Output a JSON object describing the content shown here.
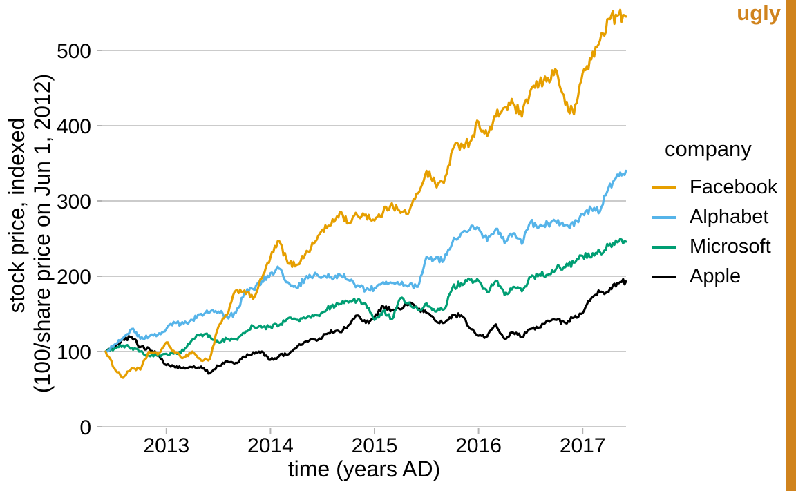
{
  "stamp": {
    "label": "ugly",
    "color": "#D0831D"
  },
  "chart_data": {
    "type": "line",
    "title": "",
    "xlabel": "time (years AD)",
    "ylabel_line1": "stock price, indexed",
    "ylabel_line2": "(100/share price on Jun 1, 2012)",
    "x_ticks": [
      2013,
      2014,
      2015,
      2016,
      2017
    ],
    "y_ticks": [
      0,
      100,
      200,
      300,
      400,
      500
    ],
    "x_range": [
      2012.417,
      2017.417
    ],
    "y_range": [
      0,
      560
    ],
    "grid": "horizontal-only",
    "legend": {
      "title": "company",
      "position": "right"
    },
    "colors": {
      "grid": "#CBCBCB",
      "tick": "#B3B3B3",
      "text": "#000000",
      "background": "#FFFFFF"
    },
    "line_width": 3.2,
    "x_monthly_start": "2012-06",
    "x_step_months": 1,
    "series": [
      {
        "name": "Facebook",
        "color": "#E69F00",
        "values": [
          100,
          78,
          65,
          78,
          76,
          100,
          96,
          112,
          98,
          92,
          100,
          88,
          90,
          133,
          149,
          181,
          181,
          170,
          197,
          225,
          247,
          217,
          215,
          229,
          243,
          262,
          268,
          285,
          271,
          281,
          282,
          274,
          285,
          297,
          284,
          286,
          310,
          340,
          323,
          324,
          368,
          376,
          378,
          405,
          386,
          412,
          424,
          429,
          412,
          447,
          455,
          463,
          473,
          428,
          415,
          470,
          488,
          513,
          542,
          546,
          545
        ]
      },
      {
        "name": "Alphabet",
        "color": "#56B4E9",
        "values": [
          100,
          109,
          118,
          130,
          117,
          120,
          122,
          130,
          138,
          137,
          142,
          150,
          152,
          153,
          146,
          151,
          178,
          183,
          193,
          204,
          210,
          192,
          185,
          197,
          201,
          199,
          199,
          202,
          195,
          188,
          182,
          184,
          192,
          191,
          189,
          188,
          186,
          226,
          223,
          221,
          245,
          257,
          262,
          264,
          247,
          263,
          244,
          257,
          243,
          272,
          266,
          270,
          271,
          268,
          267,
          283,
          290,
          286,
          318,
          335,
          340
        ]
      },
      {
        "name": "Microsoft",
        "color": "#009E73",
        "values": [
          100,
          104,
          108,
          105,
          100,
          94,
          94,
          97,
          98,
          101,
          116,
          123,
          121,
          112,
          117,
          117,
          124,
          134,
          132,
          133,
          135,
          144,
          142,
          144,
          147,
          152,
          160,
          163,
          165,
          168,
          163,
          142,
          154,
          143,
          171,
          165,
          155,
          164,
          153,
          156,
          185,
          191,
          195,
          194,
          179,
          194,
          175,
          186,
          180,
          199,
          202,
          202,
          211,
          212,
          218,
          227,
          225,
          232,
          241,
          245,
          246
        ]
      },
      {
        "name": "Apple",
        "color": "#000000",
        "values": [
          100,
          106,
          116,
          119,
          106,
          104,
          95,
          82,
          79,
          79,
          79,
          80,
          71,
          81,
          87,
          85,
          93,
          99,
          100,
          89,
          94,
          96,
          105,
          113,
          116,
          119,
          128,
          126,
          135,
          148,
          138,
          146,
          160,
          155,
          156,
          163,
          156,
          151,
          141,
          138,
          149,
          148,
          131,
          121,
          120,
          136,
          117,
          125,
          119,
          130,
          132,
          141,
          142,
          138,
          145,
          151,
          171,
          179,
          179,
          191,
          193
        ]
      }
    ]
  }
}
